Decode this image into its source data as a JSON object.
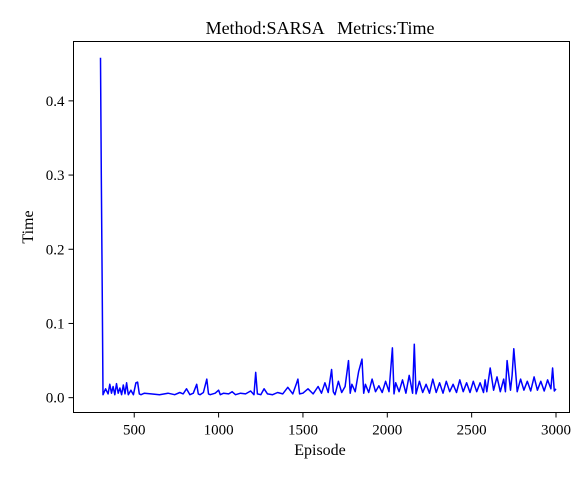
{
  "chart_data": {
    "type": "line",
    "title": "Method:SARSA   Metrics:Time",
    "xlabel": "Episode",
    "ylabel": "Time",
    "xlim": [
      140,
      3080
    ],
    "ylim": [
      -0.02,
      0.48
    ],
    "xticks": [
      500,
      1000,
      1500,
      2000,
      2500,
      3000
    ],
    "yticks": [
      0.0,
      0.1,
      0.2,
      0.3,
      0.4
    ],
    "ytick_labels": [
      "0.0",
      "0.1",
      "0.2",
      "0.3",
      "0.4"
    ],
    "grid": false,
    "series": [
      {
        "color": "#0000ff",
        "x": [
          300,
          305,
          310,
          315,
          330,
          345,
          355,
          365,
          375,
          385,
          395,
          405,
          415,
          425,
          435,
          445,
          455,
          465,
          480,
          495,
          510,
          520,
          530,
          540,
          560,
          600,
          650,
          700,
          740,
          770,
          790,
          810,
          830,
          850,
          870,
          880,
          890,
          910,
          930,
          940,
          950,
          980,
          1000,
          1010,
          1030,
          1060,
          1080,
          1100,
          1130,
          1160,
          1190,
          1210,
          1220,
          1230,
          1250,
          1270,
          1290,
          1320,
          1350,
          1380,
          1410,
          1440,
          1460,
          1470,
          1480,
          1500,
          1530,
          1560,
          1590,
          1610,
          1630,
          1650,
          1670,
          1680,
          1690,
          1710,
          1730,
          1750,
          1770,
          1780,
          1790,
          1810,
          1830,
          1850,
          1860,
          1870,
          1890,
          1910,
          1930,
          1950,
          1970,
          1990,
          2010,
          2030,
          2040,
          2050,
          2070,
          2090,
          2110,
          2130,
          2150,
          2160,
          2170,
          2190,
          2210,
          2230,
          2250,
          2270,
          2290,
          2310,
          2330,
          2350,
          2370,
          2390,
          2410,
          2430,
          2450,
          2470,
          2490,
          2510,
          2530,
          2550,
          2570,
          2580,
          2590,
          2610,
          2630,
          2650,
          2670,
          2690,
          2700,
          2710,
          2730,
          2740,
          2750,
          2770,
          2790,
          2810,
          2830,
          2850,
          2870,
          2890,
          2910,
          2930,
          2950,
          2970,
          2980,
          2990,
          3000
        ],
        "y": [
          0.458,
          0.3,
          0.15,
          0.004,
          0.012,
          0.005,
          0.018,
          0.006,
          0.015,
          0.004,
          0.019,
          0.006,
          0.013,
          0.004,
          0.017,
          0.005,
          0.02,
          0.004,
          0.01,
          0.004,
          0.02,
          0.021,
          0.005,
          0.004,
          0.006,
          0.005,
          0.004,
          0.006,
          0.004,
          0.007,
          0.005,
          0.012,
          0.004,
          0.006,
          0.018,
          0.005,
          0.004,
          0.007,
          0.025,
          0.005,
          0.004,
          0.006,
          0.01,
          0.004,
          0.006,
          0.005,
          0.008,
          0.004,
          0.006,
          0.005,
          0.009,
          0.004,
          0.034,
          0.005,
          0.004,
          0.012,
          0.005,
          0.004,
          0.007,
          0.005,
          0.014,
          0.005,
          0.018,
          0.025,
          0.005,
          0.006,
          0.012,
          0.005,
          0.015,
          0.006,
          0.02,
          0.007,
          0.038,
          0.008,
          0.004,
          0.022,
          0.007,
          0.015,
          0.05,
          0.006,
          0.018,
          0.008,
          0.035,
          0.052,
          0.006,
          0.018,
          0.007,
          0.025,
          0.008,
          0.016,
          0.007,
          0.022,
          0.008,
          0.067,
          0.005,
          0.02,
          0.008,
          0.024,
          0.006,
          0.03,
          0.006,
          0.072,
          0.005,
          0.022,
          0.007,
          0.018,
          0.006,
          0.025,
          0.007,
          0.02,
          0.006,
          0.022,
          0.008,
          0.018,
          0.007,
          0.024,
          0.008,
          0.02,
          0.007,
          0.022,
          0.008,
          0.02,
          0.007,
          0.024,
          0.008,
          0.04,
          0.01,
          0.028,
          0.008,
          0.025,
          0.008,
          0.05,
          0.01,
          0.03,
          0.066,
          0.008,
          0.025,
          0.01,
          0.022,
          0.009,
          0.028,
          0.01,
          0.022,
          0.009,
          0.024,
          0.012,
          0.04,
          0.009,
          0.012
        ]
      }
    ]
  }
}
